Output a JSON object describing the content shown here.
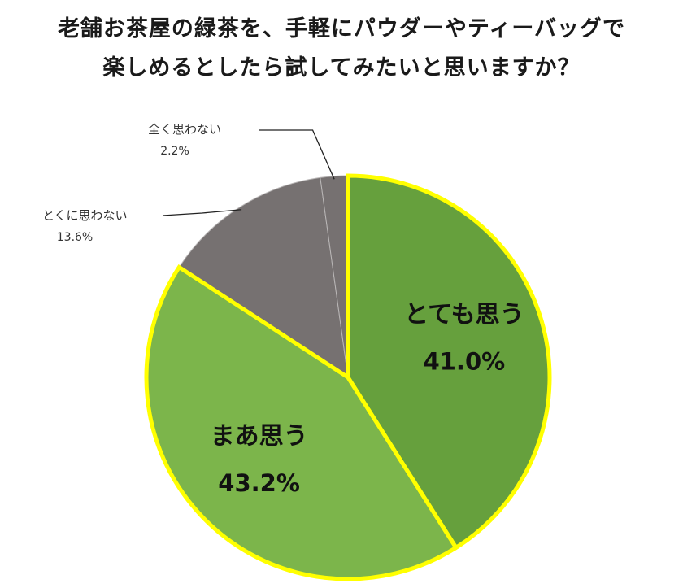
{
  "title": {
    "line1": "老舗お茶屋の緑茶を、手軽にパウダーやティーバッグで",
    "line2": "楽しめるとしたら試してみたいと思いますか？"
  },
  "chart_data": {
    "type": "pie",
    "title": "老舗お茶屋の緑茶を、手軽にパウダーやティーバッグで楽しめるとしたら試してみたいと思いますか？",
    "slices": [
      {
        "label": "とても思う",
        "value": 41.0,
        "value_label": "41.0%",
        "color": "#66a03d",
        "highlight": true,
        "label_inside": true
      },
      {
        "label": "まあ思う",
        "value": 43.2,
        "value_label": "43.2%",
        "color": "#7cb54b",
        "highlight": true,
        "label_inside": true
      },
      {
        "label": "とくに思わない",
        "value": 13.6,
        "value_label": "13.6%",
        "color": "#767171",
        "highlight": false,
        "label_inside": false
      },
      {
        "label": "全く思わない",
        "value": 2.2,
        "value_label": "2.2%",
        "color": "#767171",
        "highlight": false,
        "label_inside": false
      }
    ],
    "start_angle": "12 o'clock",
    "direction": "clockwise",
    "highlight_color": "#ffff00",
    "legend": "none"
  }
}
